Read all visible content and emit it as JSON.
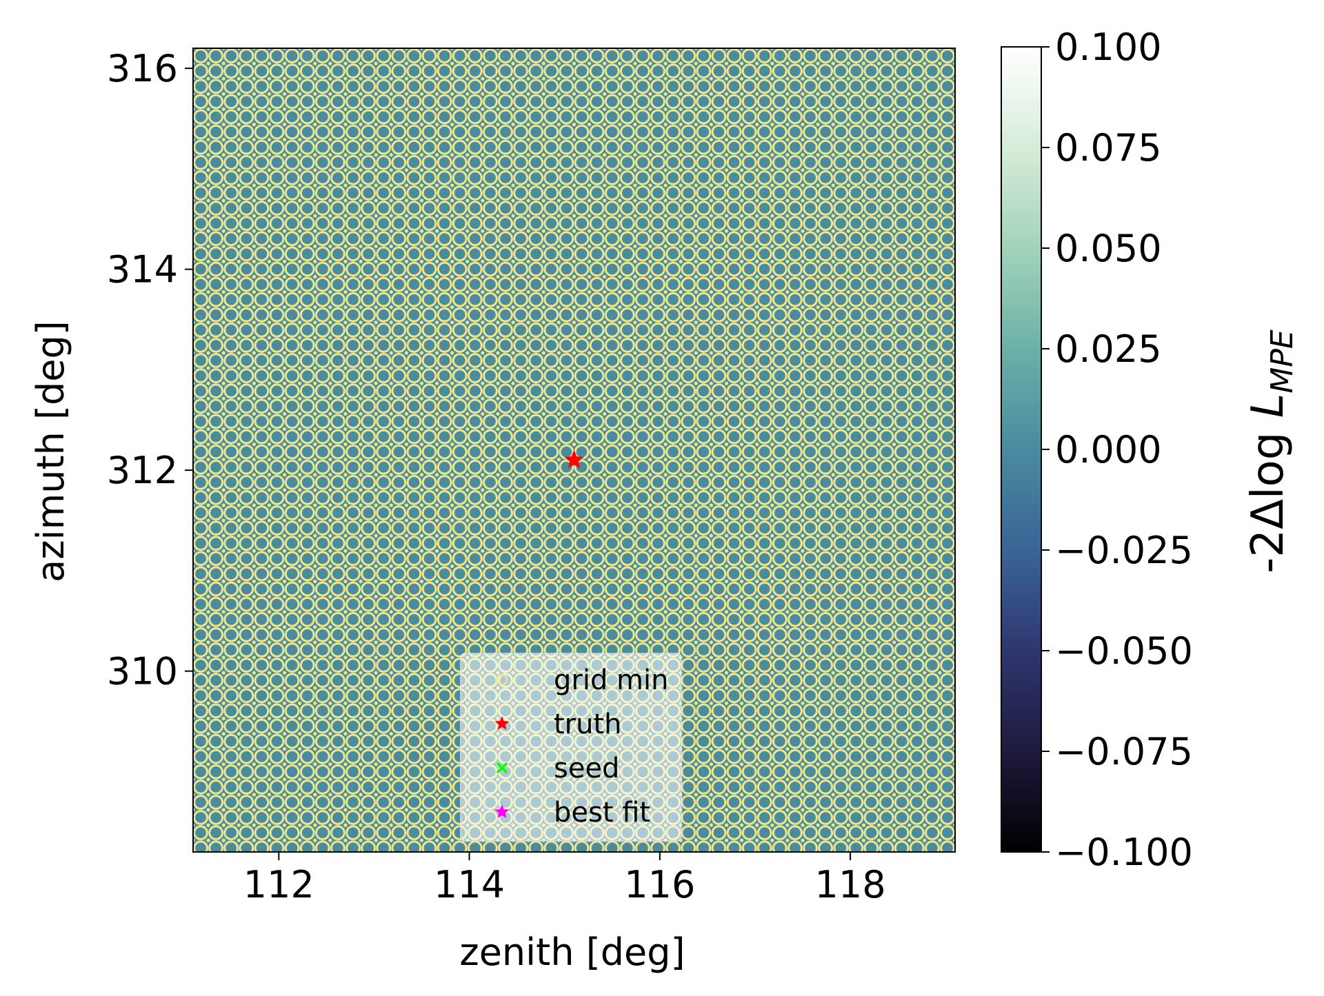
{
  "chart_data": {
    "type": "heatmap",
    "xlabel": "zenith [deg]",
    "ylabel": "azimuth [deg]",
    "xlim": [
      111.1,
      119.1
    ],
    "ylim": [
      308.2,
      316.2
    ],
    "xticks": [
      112,
      114,
      116,
      118
    ],
    "yticks": [
      310,
      312,
      314,
      316
    ],
    "x_tick_labels": [
      "112",
      "114",
      "116",
      "118"
    ],
    "y_tick_labels": [
      "310",
      "312",
      "314",
      "316"
    ],
    "grid": false,
    "grid_cell_value": 0.0,
    "grid_marker_color": "#f0e68c",
    "colorbar": {
      "label_prefix": "-2Δlog ",
      "label_var": "L",
      "label_sub": "MPE",
      "range": [
        -0.1,
        0.1
      ],
      "ticks": [
        0.1,
        0.075,
        0.05,
        0.025,
        0.0,
        -0.025,
        -0.05,
        -0.075,
        -0.1
      ],
      "tick_labels": [
        "0.100",
        "0.075",
        "0.050",
        "0.025",
        "0.000",
        "−0.025",
        "−0.050",
        "−0.075",
        "−0.100"
      ],
      "colormap": "cubehelix-teal",
      "colors": [
        "#000000",
        "#1e1a3d",
        "#2f3770",
        "#3a6496",
        "#4a8b9e",
        "#6db0a8",
        "#a2d3b9",
        "#d6ecd9",
        "#ffffff"
      ]
    },
    "markers": [
      {
        "name": "truth",
        "x": 115.1,
        "y": 312.1,
        "symbol": "star",
        "color": "#ff0000"
      }
    ],
    "legend": {
      "placement": "lower center",
      "entries": [
        {
          "label": "grid min",
          "symbol": "dot",
          "color": "#f0e68c"
        },
        {
          "label": "truth",
          "symbol": "star",
          "color": "#ff0000"
        },
        {
          "label": "seed",
          "symbol": "x",
          "color": "#00ff00"
        },
        {
          "label": "best fit",
          "symbol": "star",
          "color": "#ff00ff"
        }
      ]
    }
  }
}
